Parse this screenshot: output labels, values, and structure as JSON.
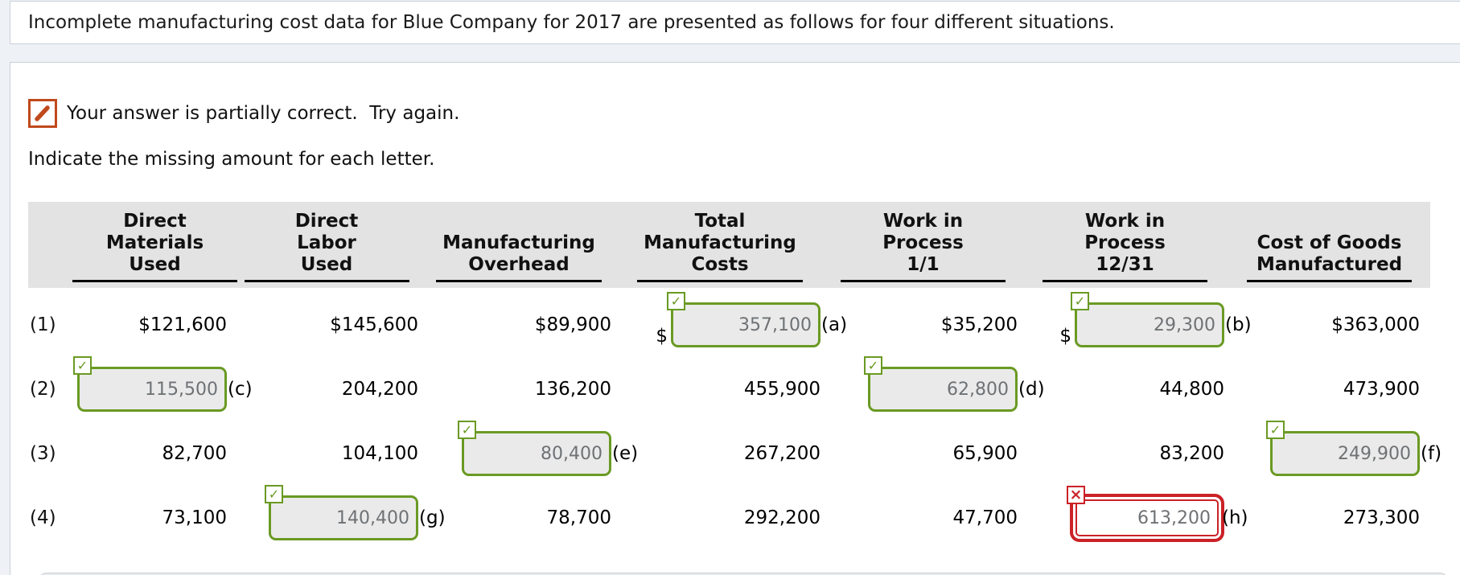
{
  "intro": {
    "text": "Incomplete manufacturing cost data for Blue Company for 2017 are presented as follows for four different situations."
  },
  "feedback": {
    "icon": "pencil-icon",
    "message": "Your answer is partially correct.  Try again."
  },
  "instruction": {
    "text": "Indicate the missing amount for each letter."
  },
  "icons": {
    "correct": "✓",
    "incorrect": "×"
  },
  "colors": {
    "correct_green": "#6a9a23",
    "incorrect_red": "#cb2127",
    "feedback_orange": "#c0491c",
    "header_band_gray": "#e3e3e3"
  },
  "table": {
    "headers": [
      {
        "id": "direct-materials-used",
        "lines": [
          "Direct",
          "Materials",
          "Used"
        ]
      },
      {
        "id": "direct-labor-used",
        "lines": [
          "Direct",
          "Labor",
          "Used"
        ]
      },
      {
        "id": "manufacturing-overhead",
        "lines": [
          "Manufacturing",
          "Overhead"
        ]
      },
      {
        "id": "total-manufacturing-costs",
        "lines": [
          "Total",
          "Manufacturing",
          "Costs"
        ]
      },
      {
        "id": "work-in-process-1-1",
        "lines": [
          "Work in",
          "Process",
          "1/1"
        ]
      },
      {
        "id": "work-in-process-12-31",
        "lines": [
          "Work in",
          "Process",
          "12/31"
        ]
      },
      {
        "id": "cost-of-goods-manufactured",
        "lines": [
          "Cost of Goods",
          "Manufactured"
        ]
      }
    ],
    "rows": [
      {
        "label": "(1)",
        "cells": [
          {
            "type": "text",
            "value": "$121,600"
          },
          {
            "type": "text",
            "value": "$145,600"
          },
          {
            "type": "text",
            "value": "$89,900"
          },
          {
            "type": "input",
            "value": "357,100",
            "letter": "(a)",
            "status": "correct",
            "dollar": "$"
          },
          {
            "type": "text",
            "value": "$35,200"
          },
          {
            "type": "input",
            "value": "29,300",
            "letter": "(b)",
            "status": "correct",
            "dollar": "$"
          },
          {
            "type": "text",
            "value": "$363,000"
          }
        ]
      },
      {
        "label": "(2)",
        "cells": [
          {
            "type": "input",
            "value": "115,500",
            "letter": "(c)",
            "status": "correct"
          },
          {
            "type": "text",
            "value": "204,200"
          },
          {
            "type": "text",
            "value": "136,200"
          },
          {
            "type": "text",
            "value": "455,900"
          },
          {
            "type": "input",
            "value": "62,800",
            "letter": "(d)",
            "status": "correct"
          },
          {
            "type": "text",
            "value": "44,800"
          },
          {
            "type": "text",
            "value": "473,900"
          }
        ]
      },
      {
        "label": "(3)",
        "cells": [
          {
            "type": "text",
            "value": "82,700"
          },
          {
            "type": "text",
            "value": "104,100"
          },
          {
            "type": "input",
            "value": "80,400",
            "letter": "(e)",
            "status": "correct"
          },
          {
            "type": "text",
            "value": "267,200"
          },
          {
            "type": "text",
            "value": "65,900"
          },
          {
            "type": "text",
            "value": "83,200"
          },
          {
            "type": "input",
            "value": "249,900",
            "letter": "(f)",
            "status": "correct"
          }
        ]
      },
      {
        "label": "(4)",
        "cells": [
          {
            "type": "text",
            "value": "73,100"
          },
          {
            "type": "input",
            "value": "140,400",
            "letter": "(g)",
            "status": "correct"
          },
          {
            "type": "text",
            "value": "78,700"
          },
          {
            "type": "text",
            "value": "292,200"
          },
          {
            "type": "text",
            "value": "47,700"
          },
          {
            "type": "input",
            "value": "613,200",
            "letter": "(h)",
            "status": "incorrect"
          },
          {
            "type": "text",
            "value": "273,300"
          }
        ]
      }
    ]
  }
}
